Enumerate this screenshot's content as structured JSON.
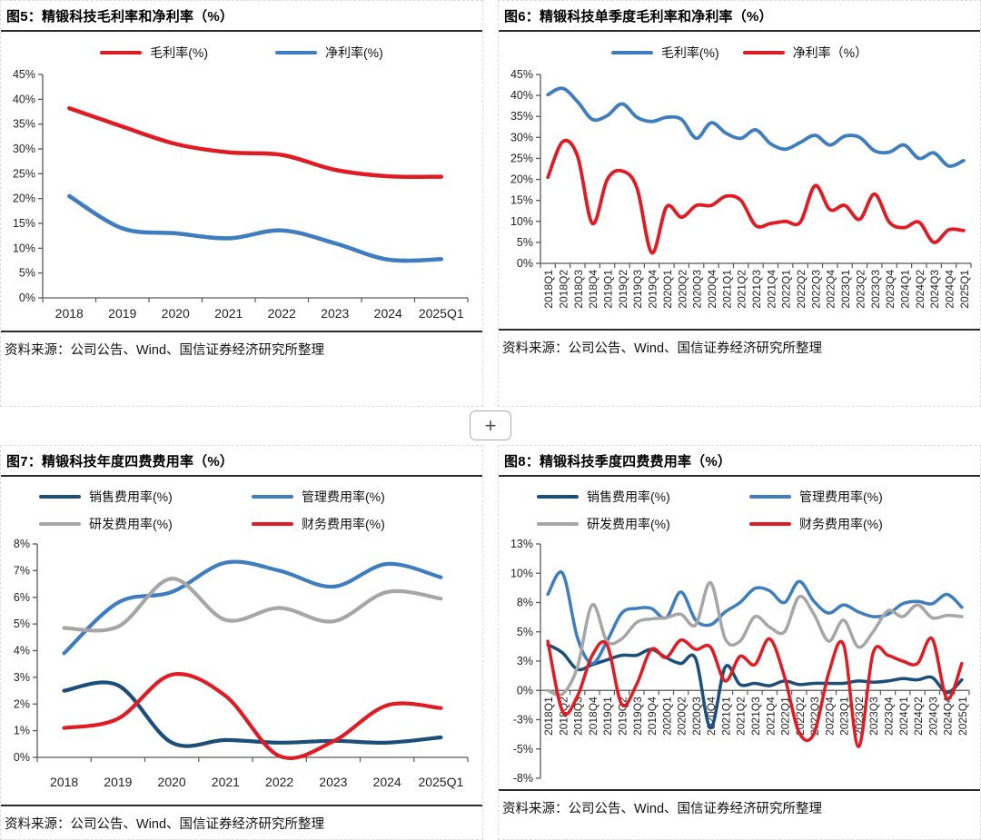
{
  "source_label": "资料来源：公司公告、Wind、国信证券经济研究所整理",
  "plus_button_label": "+",
  "colors": {
    "red": "#DF1C24",
    "blue": "#3E7DBF",
    "navy": "#1B4E79",
    "gray": "#A6A6A6"
  },
  "chart_data": [
    {
      "type": "line",
      "title": "图5：精锻科技毛利率和净利率（%）",
      "categories": [
        "2018",
        "2019",
        "2020",
        "2021",
        "2022",
        "2023",
        "2024",
        "2025Q1"
      ],
      "ylim": [
        0,
        45
      ],
      "yticks": [
        {
          "v": 0,
          "t": "0%"
        },
        {
          "v": 5,
          "t": "5%"
        },
        {
          "v": 10,
          "t": "10%"
        },
        {
          "v": 15,
          "t": "15%"
        },
        {
          "v": 20,
          "t": "20%"
        },
        {
          "v": 25,
          "t": "25%"
        },
        {
          "v": 30,
          "t": "30%"
        },
        {
          "v": 35,
          "t": "35%"
        },
        {
          "v": 40,
          "t": "40%"
        },
        {
          "v": 45,
          "t": "45%"
        }
      ],
      "grid": false,
      "legend_position": "top",
      "series": [
        {
          "name": "毛利率(%)",
          "color": "red",
          "values": [
            38.2,
            34.5,
            31.0,
            29.3,
            28.8,
            25.8,
            24.5,
            24.4
          ]
        },
        {
          "name": "净利率(%)",
          "color": "blue",
          "values": [
            20.5,
            14.0,
            13.0,
            12.0,
            13.6,
            11.0,
            7.7,
            7.8
          ]
        }
      ]
    },
    {
      "type": "line",
      "title": "图6：精锻科技单季度毛利率和净利率（%）",
      "categories": [
        "2018Q1",
        "2018Q2",
        "2018Q3",
        "2018Q4",
        "2019Q1",
        "2019Q2",
        "2019Q3",
        "2019Q4",
        "2020Q1",
        "2020Q2",
        "2020Q3",
        "2020Q4",
        "2021Q1",
        "2021Q2",
        "2021Q3",
        "2021Q4",
        "2022Q1",
        "2022Q2",
        "2022Q3",
        "2022Q4",
        "2023Q1",
        "2023Q2",
        "2023Q3",
        "2023Q4",
        "2024Q1",
        "2024Q2",
        "2024Q3",
        "2024Q4",
        "2025Q1"
      ],
      "ylim": [
        0,
        45
      ],
      "yticks": [
        {
          "v": 0,
          "t": "0%"
        },
        {
          "v": 5,
          "t": "5%"
        },
        {
          "v": 10,
          "t": "10%"
        },
        {
          "v": 15,
          "t": "15%"
        },
        {
          "v": 20,
          "t": "20%"
        },
        {
          "v": 25,
          "t": "25%"
        },
        {
          "v": 30,
          "t": "30%"
        },
        {
          "v": 35,
          "t": "35%"
        },
        {
          "v": 40,
          "t": "40%"
        },
        {
          "v": 45,
          "t": "45%"
        }
      ],
      "grid": false,
      "legend_position": "top",
      "series": [
        {
          "name": "毛利率(%)",
          "color": "blue",
          "values": [
            40.2,
            41.7,
            38.5,
            34.3,
            35.2,
            38.0,
            34.8,
            33.8,
            34.8,
            34.3,
            29.8,
            33.5,
            31.0,
            29.8,
            31.8,
            28.5,
            27.2,
            28.8,
            30.5,
            28.2,
            30.3,
            30.0,
            26.8,
            26.5,
            28.2,
            25.0,
            26.3,
            23.2,
            24.5
          ]
        },
        {
          "name": "净利率（%）",
          "color": "red",
          "values": [
            20.5,
            29.0,
            25.5,
            9.5,
            20.0,
            22.0,
            18.0,
            2.5,
            13.5,
            11.0,
            13.8,
            13.8,
            16.0,
            15.0,
            9.0,
            9.5,
            10.0,
            9.8,
            18.5,
            12.8,
            13.8,
            10.5,
            16.5,
            9.8,
            8.5,
            9.8,
            5.0,
            8.0,
            7.8
          ]
        }
      ]
    },
    {
      "type": "line",
      "title": "图7：精锻科技年度四费费用率（%）",
      "categories": [
        "2018",
        "2019",
        "2020",
        "2021",
        "2022",
        "2023",
        "2024",
        "2025Q1"
      ],
      "ylim": [
        0,
        8
      ],
      "yticks": [
        {
          "v": 0,
          "t": "0%"
        },
        {
          "v": 1,
          "t": "1%"
        },
        {
          "v": 2,
          "t": "2%"
        },
        {
          "v": 3,
          "t": "3%"
        },
        {
          "v": 4,
          "t": "4%"
        },
        {
          "v": 5,
          "t": "5%"
        },
        {
          "v": 6,
          "t": "6%"
        },
        {
          "v": 7,
          "t": "7%"
        },
        {
          "v": 8,
          "t": "8%"
        }
      ],
      "grid": false,
      "legend_position": "top",
      "series": [
        {
          "name": "销售费用率(%)",
          "color": "navy",
          "values": [
            2.5,
            2.7,
            0.55,
            0.65,
            0.55,
            0.62,
            0.55,
            0.75
          ]
        },
        {
          "name": "管理费用率(%)",
          "color": "blue",
          "values": [
            3.9,
            5.8,
            6.2,
            7.3,
            7.0,
            6.4,
            7.25,
            6.75
          ]
        },
        {
          "name": "研发费用率(%)",
          "color": "gray",
          "values": [
            4.85,
            4.9,
            6.7,
            5.15,
            5.6,
            5.1,
            6.2,
            5.95
          ]
        },
        {
          "name": "财务费用率(%)",
          "color": "red",
          "values": [
            1.1,
            1.45,
            3.1,
            2.3,
            0.05,
            0.6,
            1.95,
            1.85
          ]
        }
      ]
    },
    {
      "type": "line",
      "title": "图8：精锻科技季度四费费用率（%）",
      "categories": [
        "2018Q1",
        "2018Q2",
        "2018Q3",
        "2018Q4",
        "2019Q1",
        "2019Q2",
        "2019Q3",
        "2019Q4",
        "2020Q1",
        "2020Q2",
        "2020Q3",
        "2020Q4",
        "2021Q1",
        "2021Q2",
        "2021Q3",
        "2021Q4",
        "2022Q1",
        "2022Q2",
        "2022Q3",
        "2022Q4",
        "2023Q1",
        "2023Q2",
        "2023Q3",
        "2023Q4",
        "2024Q1",
        "2024Q2",
        "2024Q3",
        "2024Q4",
        "2025Q1"
      ],
      "ylim": [
        -7.5,
        12.5
      ],
      "yticks": [
        {
          "v": 12.5,
          "t": "13%"
        },
        {
          "v": 10,
          "t": "10%"
        },
        {
          "v": 7.5,
          "t": "8%"
        },
        {
          "v": 5,
          "t": "5%"
        },
        {
          "v": 2.5,
          "t": "3%"
        },
        {
          "v": 0,
          "t": "0%"
        },
        {
          "v": -2.5,
          "t": "-3%"
        },
        {
          "v": -5,
          "t": "-5%"
        },
        {
          "v": -7.5,
          "t": "-8%"
        }
      ],
      "grid": false,
      "legend_position": "top",
      "series": [
        {
          "name": "销售费用率(%)",
          "color": "navy",
          "values": [
            3.9,
            3.2,
            1.8,
            2.2,
            2.6,
            3.0,
            3.0,
            3.5,
            2.8,
            2.3,
            2.7,
            -3.2,
            2.0,
            0.5,
            0.6,
            0.4,
            0.8,
            0.5,
            0.6,
            0.6,
            0.6,
            0.8,
            0.7,
            0.8,
            1.0,
            0.9,
            1.1,
            -0.2,
            0.9
          ]
        },
        {
          "name": "管理费用率(%)",
          "color": "blue",
          "values": [
            8.2,
            10.0,
            4.5,
            2.3,
            4.2,
            6.6,
            7.0,
            7.0,
            6.2,
            8.4,
            6.0,
            5.6,
            6.7,
            7.5,
            8.7,
            8.5,
            7.5,
            9.3,
            7.6,
            6.6,
            7.3,
            6.7,
            6.3,
            6.5,
            7.4,
            7.6,
            7.4,
            8.2,
            7.1
          ]
        },
        {
          "name": "研发费用率(%)",
          "color": "gray",
          "values": [
            0.0,
            -0.3,
            2.0,
            7.3,
            4.2,
            4.4,
            5.8,
            6.1,
            6.2,
            6.5,
            5.6,
            9.2,
            4.4,
            4.2,
            6.3,
            5.4,
            5.0,
            8.0,
            6.5,
            4.2,
            6.0,
            3.7,
            5.0,
            6.8,
            6.3,
            7.3,
            6.2,
            6.4,
            6.3
          ]
        },
        {
          "name": "财务费用率(%)",
          "color": "red",
          "values": [
            4.2,
            -1.8,
            -0.5,
            3.0,
            3.9,
            -1.2,
            0.5,
            3.5,
            2.8,
            4.3,
            3.5,
            3.7,
            0.8,
            2.9,
            2.2,
            4.4,
            1.2,
            -3.6,
            -3.7,
            1.5,
            3.9,
            -4.8,
            3.2,
            3.0,
            2.5,
            2.3,
            4.4,
            -0.7,
            2.3
          ]
        }
      ]
    }
  ]
}
